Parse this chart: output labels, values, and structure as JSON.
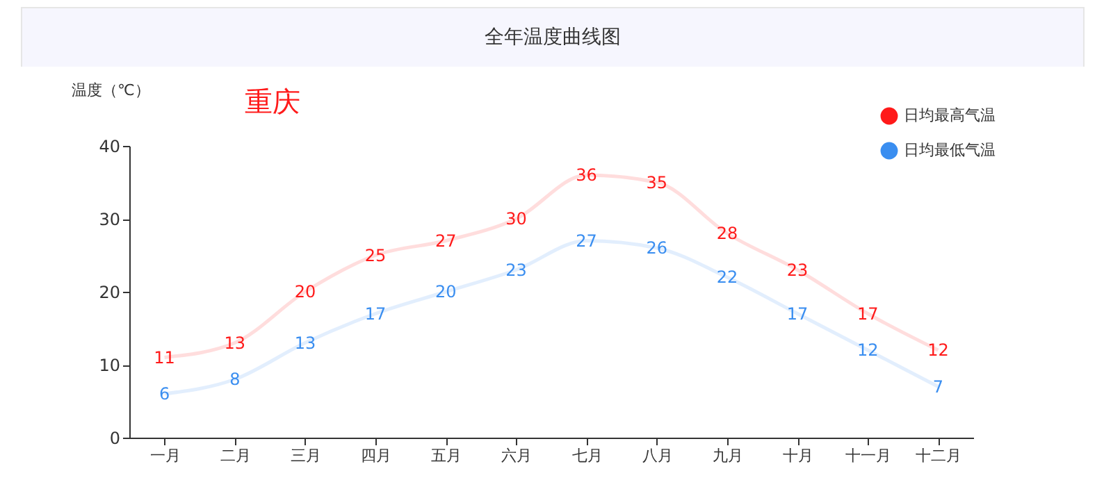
{
  "chart_data": {
    "type": "line",
    "title": "全年温度曲线图",
    "subtitle": "重庆",
    "ylabel": "温度（℃）",
    "categories": [
      "一月",
      "二月",
      "三月",
      "四月",
      "五月",
      "六月",
      "七月",
      "八月",
      "九月",
      "十月",
      "十一月",
      "十二月"
    ],
    "series": [
      {
        "name": "日均最高气温",
        "color": "#ff1a1a",
        "values": [
          11,
          13,
          20,
          25,
          27,
          30,
          36,
          35,
          28,
          23,
          17,
          12
        ]
      },
      {
        "name": "日均最低气温",
        "color": "#3a8ef0",
        "values": [
          6,
          8,
          13,
          17,
          20,
          23,
          27,
          26,
          22,
          17,
          12,
          7
        ]
      }
    ],
    "ylim": [
      0,
      40
    ],
    "yticks": [
      0,
      10,
      20,
      30,
      40
    ],
    "grid": false,
    "legend": "top right",
    "marker": "none",
    "line_style": "solid",
    "data_labels": true
  }
}
